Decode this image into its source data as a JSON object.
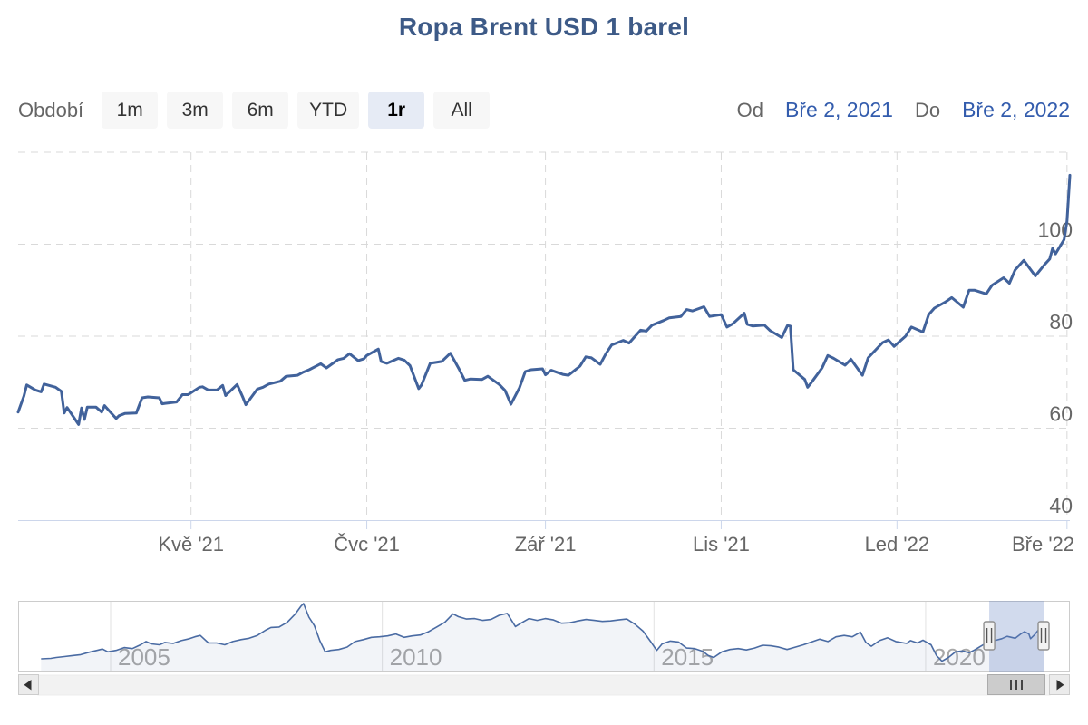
{
  "title": "Ropa Brent USD 1 barel",
  "range_selector": {
    "label": "Období",
    "buttons": [
      {
        "label": "1m",
        "selected": false
      },
      {
        "label": "3m",
        "selected": false
      },
      {
        "label": "6m",
        "selected": false
      },
      {
        "label": "YTD",
        "selected": false
      },
      {
        "label": "1r",
        "selected": true
      },
      {
        "label": "All",
        "selected": false
      }
    ],
    "from_label": "Od",
    "from_value": "Bře 2, 2021",
    "to_label": "Do",
    "to_value": "Bře 2, 2022"
  },
  "colors": {
    "title": "#3d5a87",
    "series": "#41629b",
    "grid": "#d9d9d9",
    "axis_line": "#ccd6eb",
    "axis_label": "#666666",
    "nav_grid": "#e2e2e2",
    "nav_label": "#999999",
    "nav_line": "#4a6ba3",
    "nav_area": "rgba(65,97,156,0.07)",
    "mask": "rgba(102,133,194,0.3)",
    "input_text": "#335cad",
    "button_bg": "#f7f7f7",
    "button_selected_bg": "#e6ebf5"
  },
  "icons": {
    "scrollbar_left": "left-arrow-icon",
    "scrollbar_right": "right-arrow-icon",
    "thumb_grip": "grip-lines-icon",
    "handles": "range-handle-icon"
  },
  "chart_data": {
    "type": "line",
    "title": "Ropa Brent USD 1 barel",
    "series_name": "Ropa Brent USD 1 barel",
    "x_range": [
      "2021-03-02",
      "2022-03-02"
    ],
    "ylabel": "USD",
    "ylim": [
      40,
      120
    ],
    "y_ticks": [
      40,
      60,
      80,
      100
    ],
    "grid": true,
    "x_ticks": [
      {
        "label": "Kvě '21",
        "day": 60
      },
      {
        "label": "Čvc '21",
        "day": 121
      },
      {
        "label": "Zář '21",
        "day": 183
      },
      {
        "label": "Lis '21",
        "day": 244
      },
      {
        "label": "Led '22",
        "day": 305
      },
      {
        "label": "Bře '22",
        "day": 364
      }
    ],
    "points": [
      [
        0,
        63.5
      ],
      [
        2,
        67.0
      ],
      [
        3,
        69.4
      ],
      [
        6,
        68.3
      ],
      [
        8,
        67.9
      ],
      [
        9,
        69.6
      ],
      [
        13,
        68.9
      ],
      [
        15,
        68.0
      ],
      [
        16,
        63.3
      ],
      [
        17,
        64.5
      ],
      [
        21,
        60.8
      ],
      [
        22,
        64.4
      ],
      [
        23,
        61.9
      ],
      [
        24,
        64.6
      ],
      [
        27,
        64.6
      ],
      [
        29,
        63.5
      ],
      [
        30,
        64.9
      ],
      [
        34,
        62.1
      ],
      [
        35,
        62.7
      ],
      [
        37,
        63.2
      ],
      [
        41,
        63.3
      ],
      [
        43,
        66.6
      ],
      [
        45,
        66.8
      ],
      [
        49,
        66.6
      ],
      [
        50,
        65.3
      ],
      [
        51,
        65.4
      ],
      [
        55,
        65.7
      ],
      [
        57,
        67.3
      ],
      [
        59,
        67.3
      ],
      [
        63,
        68.9
      ],
      [
        64,
        69.0
      ],
      [
        66,
        68.3
      ],
      [
        69,
        68.3
      ],
      [
        71,
        69.3
      ],
      [
        72,
        67.1
      ],
      [
        76,
        69.5
      ],
      [
        78,
        66.7
      ],
      [
        79,
        65.1
      ],
      [
        83,
        68.5
      ],
      [
        85,
        68.9
      ],
      [
        87,
        69.6
      ],
      [
        91,
        70.2
      ],
      [
        93,
        71.3
      ],
      [
        97,
        71.5
      ],
      [
        99,
        72.2
      ],
      [
        101,
        72.7
      ],
      [
        105,
        74.0
      ],
      [
        107,
        73.1
      ],
      [
        111,
        74.9
      ],
      [
        113,
        75.2
      ],
      [
        115,
        76.2
      ],
      [
        118,
        74.7
      ],
      [
        120,
        75.1
      ],
      [
        121,
        75.8
      ],
      [
        125,
        77.2
      ],
      [
        126,
        74.5
      ],
      [
        128,
        74.1
      ],
      [
        132,
        75.2
      ],
      [
        134,
        74.8
      ],
      [
        136,
        73.6
      ],
      [
        139,
        68.6
      ],
      [
        140,
        69.4
      ],
      [
        143,
        74.1
      ],
      [
        147,
        74.5
      ],
      [
        150,
        76.3
      ],
      [
        153,
        72.9
      ],
      [
        155,
        70.4
      ],
      [
        157,
        70.7
      ],
      [
        161,
        70.6
      ],
      [
        163,
        71.3
      ],
      [
        167,
        69.5
      ],
      [
        169,
        68.2
      ],
      [
        171,
        65.2
      ],
      [
        174,
        68.8
      ],
      [
        176,
        72.3
      ],
      [
        178,
        72.7
      ],
      [
        182,
        72.9
      ],
      [
        183,
        71.6
      ],
      [
        185,
        72.6
      ],
      [
        189,
        71.7
      ],
      [
        191,
        71.5
      ],
      [
        195,
        73.5
      ],
      [
        197,
        75.5
      ],
      [
        199,
        75.3
      ],
      [
        202,
        73.9
      ],
      [
        204,
        76.2
      ],
      [
        206,
        78.1
      ],
      [
        210,
        79.1
      ],
      [
        212,
        78.5
      ],
      [
        216,
        81.3
      ],
      [
        218,
        81.1
      ],
      [
        220,
        82.4
      ],
      [
        224,
        83.4
      ],
      [
        226,
        84.0
      ],
      [
        230,
        84.3
      ],
      [
        232,
        85.8
      ],
      [
        234,
        85.5
      ],
      [
        238,
        86.4
      ],
      [
        240,
        84.3
      ],
      [
        244,
        84.7
      ],
      [
        246,
        82.0
      ],
      [
        248,
        82.7
      ],
      [
        252,
        85.0
      ],
      [
        253,
        82.6
      ],
      [
        255,
        82.2
      ],
      [
        259,
        82.4
      ],
      [
        261,
        81.2
      ],
      [
        265,
        79.7
      ],
      [
        267,
        82.3
      ],
      [
        268,
        82.2
      ],
      [
        269,
        72.7
      ],
      [
        273,
        70.6
      ],
      [
        274,
        68.9
      ],
      [
        275,
        69.7
      ],
      [
        279,
        73.1
      ],
      [
        281,
        75.8
      ],
      [
        283,
        75.2
      ],
      [
        287,
        73.7
      ],
      [
        289,
        75.0
      ],
      [
        293,
        71.5
      ],
      [
        295,
        75.3
      ],
      [
        300,
        78.6
      ],
      [
        302,
        79.2
      ],
      [
        304,
        77.8
      ],
      [
        308,
        80.0
      ],
      [
        310,
        82.0
      ],
      [
        314,
        80.9
      ],
      [
        316,
        84.7
      ],
      [
        318,
        86.1
      ],
      [
        322,
        87.5
      ],
      [
        324,
        88.4
      ],
      [
        328,
        86.3
      ],
      [
        330,
        90.0
      ],
      [
        332,
        90.0
      ],
      [
        336,
        89.2
      ],
      [
        338,
        91.1
      ],
      [
        342,
        92.7
      ],
      [
        344,
        91.5
      ],
      [
        346,
        94.4
      ],
      [
        349,
        96.5
      ],
      [
        351,
        94.8
      ],
      [
        353,
        93.1
      ],
      [
        356,
        95.4
      ],
      [
        358,
        96.8
      ],
      [
        359,
        99.1
      ],
      [
        360,
        97.9
      ],
      [
        363,
        101.0
      ],
      [
        364,
        105.0
      ],
      [
        365,
        115.0
      ]
    ],
    "navigator": {
      "x_ticks": [
        {
          "label": "2005",
          "year": 2005
        },
        {
          "label": "2010",
          "year": 2010
        },
        {
          "label": "2015",
          "year": 2015
        },
        {
          "label": "2020",
          "year": 2020
        }
      ],
      "selection": {
        "from_year": 2021.17,
        "to_year": 2022.17
      },
      "points": [
        [
          2003.72,
          27
        ],
        [
          2003.9,
          28
        ],
        [
          2004.0,
          30
        ],
        [
          2004.15,
          32
        ],
        [
          2004.3,
          34
        ],
        [
          2004.45,
          36
        ],
        [
          2004.6,
          41
        ],
        [
          2004.75,
          45
        ],
        [
          2004.85,
          48
        ],
        [
          2004.95,
          42
        ],
        [
          2005.1,
          45
        ],
        [
          2005.25,
          51
        ],
        [
          2005.4,
          49
        ],
        [
          2005.55,
          57
        ],
        [
          2005.65,
          64
        ],
        [
          2005.75,
          59
        ],
        [
          2005.9,
          57
        ],
        [
          2006.0,
          62
        ],
        [
          2006.15,
          60
        ],
        [
          2006.3,
          66
        ],
        [
          2006.45,
          70
        ],
        [
          2006.55,
          74
        ],
        [
          2006.65,
          77
        ],
        [
          2006.8,
          61
        ],
        [
          2006.95,
          61
        ],
        [
          2007.1,
          57
        ],
        [
          2007.25,
          64
        ],
        [
          2007.4,
          68
        ],
        [
          2007.55,
          71
        ],
        [
          2007.7,
          77
        ],
        [
          2007.85,
          88
        ],
        [
          2007.95,
          94
        ],
        [
          2008.1,
          95
        ],
        [
          2008.25,
          105
        ],
        [
          2008.4,
          123
        ],
        [
          2008.5,
          139
        ],
        [
          2008.55,
          145
        ],
        [
          2008.65,
          116
        ],
        [
          2008.75,
          98
        ],
        [
          2008.85,
          66
        ],
        [
          2008.95,
          42
        ],
        [
          2009.05,
          45
        ],
        [
          2009.2,
          47
        ],
        [
          2009.35,
          52
        ],
        [
          2009.5,
          64
        ],
        [
          2009.65,
          68
        ],
        [
          2009.8,
          73
        ],
        [
          2009.95,
          74
        ],
        [
          2010.1,
          76
        ],
        [
          2010.25,
          80
        ],
        [
          2010.4,
          73
        ],
        [
          2010.55,
          76
        ],
        [
          2010.7,
          78
        ],
        [
          2010.85,
          85
        ],
        [
          2011.0,
          95
        ],
        [
          2011.15,
          105
        ],
        [
          2011.3,
          123
        ],
        [
          2011.4,
          117
        ],
        [
          2011.55,
          112
        ],
        [
          2011.7,
          113
        ],
        [
          2011.85,
          109
        ],
        [
          2012.0,
          111
        ],
        [
          2012.15,
          120
        ],
        [
          2012.3,
          124
        ],
        [
          2012.45,
          96
        ],
        [
          2012.55,
          103
        ],
        [
          2012.7,
          113
        ],
        [
          2012.85,
          109
        ],
        [
          2013.0,
          113
        ],
        [
          2013.15,
          110
        ],
        [
          2013.3,
          103
        ],
        [
          2013.45,
          104
        ],
        [
          2013.6,
          108
        ],
        [
          2013.75,
          111
        ],
        [
          2013.9,
          109
        ],
        [
          2014.05,
          107
        ],
        [
          2014.2,
          108
        ],
        [
          2014.35,
          110
        ],
        [
          2014.5,
          112
        ],
        [
          2014.65,
          101
        ],
        [
          2014.8,
          86
        ],
        [
          2014.95,
          62
        ],
        [
          2015.05,
          45
        ],
        [
          2015.15,
          59
        ],
        [
          2015.3,
          65
        ],
        [
          2015.45,
          63
        ],
        [
          2015.6,
          50
        ],
        [
          2015.75,
          49
        ],
        [
          2015.9,
          43
        ],
        [
          2016.0,
          34
        ],
        [
          2016.1,
          30
        ],
        [
          2016.25,
          42
        ],
        [
          2016.4,
          47
        ],
        [
          2016.55,
          49
        ],
        [
          2016.7,
          46
        ],
        [
          2016.85,
          50
        ],
        [
          2017.0,
          56
        ],
        [
          2017.15,
          55
        ],
        [
          2017.3,
          52
        ],
        [
          2017.45,
          47
        ],
        [
          2017.6,
          52
        ],
        [
          2017.75,
          57
        ],
        [
          2017.9,
          63
        ],
        [
          2018.05,
          69
        ],
        [
          2018.2,
          64
        ],
        [
          2018.35,
          74
        ],
        [
          2018.5,
          77
        ],
        [
          2018.65,
          74
        ],
        [
          2018.8,
          84
        ],
        [
          2018.9,
          62
        ],
        [
          2019.0,
          54
        ],
        [
          2019.15,
          66
        ],
        [
          2019.3,
          72
        ],
        [
          2019.45,
          64
        ],
        [
          2019.55,
          62
        ],
        [
          2019.65,
          60
        ],
        [
          2019.72,
          66
        ],
        [
          2019.85,
          61
        ],
        [
          2019.95,
          67
        ],
        [
          2020.1,
          57
        ],
        [
          2020.2,
          34
        ],
        [
          2020.3,
          22
        ],
        [
          2020.42,
          30
        ],
        [
          2020.55,
          42
        ],
        [
          2020.68,
          44
        ],
        [
          2020.8,
          40
        ],
        [
          2020.9,
          46
        ],
        [
          2021.0,
          53
        ],
        [
          2021.1,
          60
        ],
        [
          2021.17,
          64
        ],
        [
          2021.3,
          67
        ],
        [
          2021.4,
          70
        ],
        [
          2021.5,
          75
        ],
        [
          2021.58,
          73
        ],
        [
          2021.65,
          71
        ],
        [
          2021.75,
          80
        ],
        [
          2021.82,
          85
        ],
        [
          2021.9,
          80
        ],
        [
          2021.93,
          70
        ],
        [
          2022.0,
          78
        ],
        [
          2022.07,
          88
        ],
        [
          2022.12,
          95
        ],
        [
          2022.17,
          103
        ]
      ]
    }
  }
}
